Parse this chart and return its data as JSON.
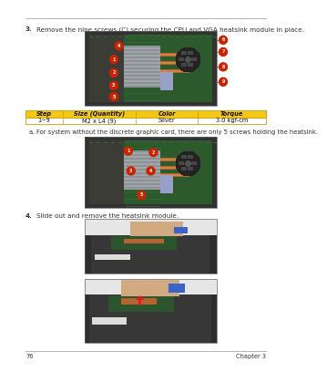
{
  "page_number": "76",
  "chapter": "Chapter 3",
  "top_line_color": "#aaaaaa",
  "bottom_line_color": "#aaaaaa",
  "background_color": "#ffffff",
  "step3_text": "3.   Remove the nine screws (C) securing the CPU and VGA heatsink module in place.",
  "step4_text": "4.   Slide out and remove the heatsink module.",
  "sub_a_text": "a.   For system without the discrete graphic card, there are only 5 screws holding the heatsink.",
  "table_header_bg": "#f5c518",
  "table_border_color": "#c8a000",
  "table_headers": [
    "Step",
    "Size (Quantity)",
    "Color",
    "Torque"
  ],
  "table_row": [
    "1~9",
    "M2 x L4 (9)",
    "Silver",
    "3.0 kgf-cm"
  ],
  "text_color": "#333333",
  "font_size_body": 5.2,
  "font_size_table": 4.8,
  "font_size_footer": 4.8
}
